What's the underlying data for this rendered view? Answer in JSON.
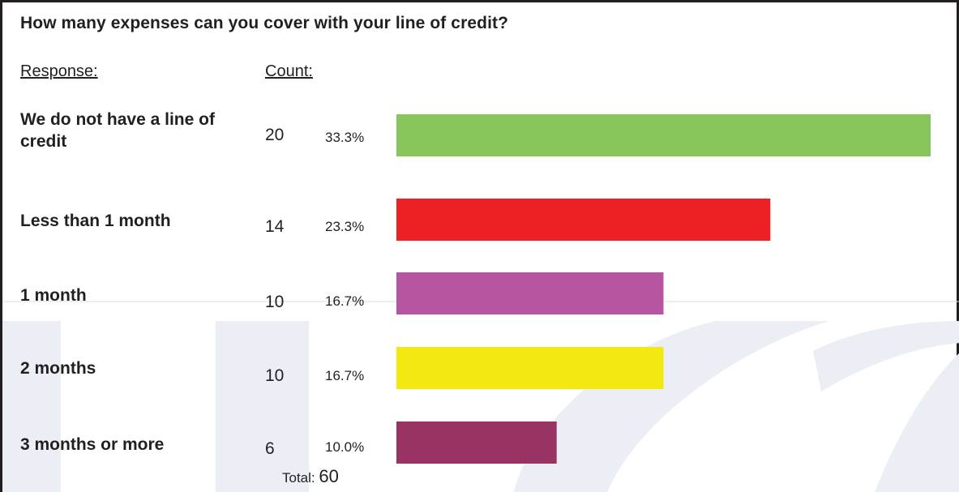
{
  "chart_data": {
    "type": "bar",
    "orientation": "horizontal",
    "title": "How many expenses can you cover with your line of credit?",
    "column_headers": {
      "response": "Response:",
      "count": "Count:"
    },
    "categories": [
      "We do not have a line of credit",
      "Less than 1 month",
      "1 month",
      "2 months",
      "3 months or more"
    ],
    "values": [
      20,
      14,
      10,
      10,
      6
    ],
    "percents": [
      "33.3%",
      "23.3%",
      "16.7%",
      "16.7%",
      "10.0%"
    ],
    "colors": [
      "#88c55d",
      "#ed2024",
      "#b655a0",
      "#f4e813",
      "#983363"
    ],
    "xlim": [
      0,
      20
    ],
    "grid": false,
    "legend": "none",
    "total_label": "Total:",
    "total_value": "60"
  },
  "rows": [
    {
      "label": "We do not have a line of credit",
      "count": "20",
      "percent": "33.3%"
    },
    {
      "label": "Less than 1 month",
      "count": "14",
      "percent": "23.3%"
    },
    {
      "label": "1 month",
      "count": "10",
      "percent": "16.7%"
    },
    {
      "label": "2 months",
      "count": "10",
      "percent": "16.7%"
    },
    {
      "label": "3 months or more",
      "count": "6",
      "percent": "10.0%"
    }
  ]
}
